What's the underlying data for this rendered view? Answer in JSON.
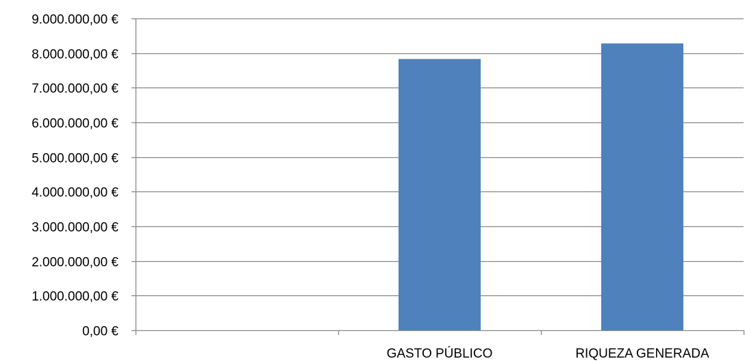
{
  "chart_data": {
    "type": "bar",
    "categories": [
      "",
      "GASTO PÚBLICO",
      "RIQUEZA GENERADA"
    ],
    "values": [
      null,
      7830000,
      8280000
    ],
    "ylim": [
      0,
      9000000
    ],
    "yticks": [
      0,
      1000000,
      2000000,
      3000000,
      4000000,
      5000000,
      6000000,
      7000000,
      8000000,
      9000000
    ],
    "ytick_labels": [
      "0,00 €",
      "1.000.000,00 €",
      "2.000.000,00 €",
      "3.000.000,00 €",
      "4.000.000,00 €",
      "5.000.000,00 €",
      "6.000.000,00 €",
      "7.000.000,00 €",
      "8.000.000,00 €",
      "9.000.000,00 €"
    ],
    "grid": true,
    "legend": "none",
    "colors": {
      "bar": "#4F81BD",
      "grid": "#868686",
      "axis": "#868686"
    }
  }
}
